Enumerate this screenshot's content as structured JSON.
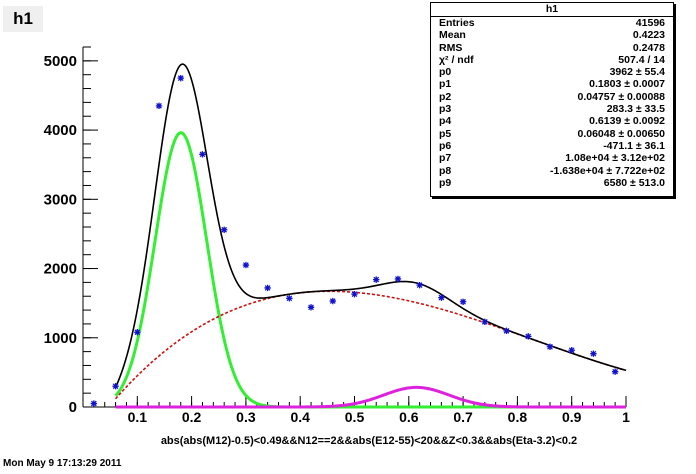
{
  "histogram": {
    "name": "h1",
    "stats_title": "h1",
    "stats": [
      {
        "label": "Entries",
        "value": "41596"
      },
      {
        "label": "Mean",
        "value": "0.4223"
      },
      {
        "label": "RMS",
        "value": "0.2478"
      },
      {
        "label": "χ² / ndf",
        "value": "507.4 / 14"
      },
      {
        "label": "p0",
        "value": "3962 ± 55.4"
      },
      {
        "label": "p1",
        "value": "0.1803 ± 0.0007"
      },
      {
        "label": "p2",
        "value": "0.04757 ± 0.00088"
      },
      {
        "label": "p3",
        "value": "283.3 ± 33.5"
      },
      {
        "label": "p4",
        "value": "0.6139 ± 0.0092"
      },
      {
        "label": "p5",
        "value": "0.06048 ± 0.00650"
      },
      {
        "label": "p6",
        "value": "-471.1 ± 36.1"
      },
      {
        "label": "p7",
        "value": "1.08e+04 ± 3.12e+02"
      },
      {
        "label": "p8",
        "value": "-1.638e+04 ± 7.722e+02"
      },
      {
        "label": "p9",
        "value": "6580 ± 513.0"
      }
    ]
  },
  "footer": {
    "timestamp": "Mon May  9 17:13:29 2011"
  },
  "colors": {
    "total_fit": "#000000",
    "gauss1": "#33ee33",
    "gauss2": "#dd22dd",
    "background": "#cc1111",
    "data_points": "#1111cc"
  },
  "chart_data": {
    "type": "scatter",
    "title": "h1",
    "xlabel": "abs(abs(M12)-0.5)<0.49&&N12==2&&abs(E12-55)<20&&Z<0.3&&abs(Eta-3.2)<0.2",
    "ylabel": "",
    "xlim": [
      0,
      1
    ],
    "ylim": [
      0,
      5200
    ],
    "x_ticks": [
      "0.1",
      "0.2",
      "0.3",
      "0.4",
      "0.5",
      "0.6",
      "0.7",
      "0.8",
      "0.9",
      "1"
    ],
    "y_ticks": [
      "0",
      "1000",
      "2000",
      "3000",
      "4000",
      "5000"
    ],
    "grid": false,
    "data_points": {
      "x": [
        0.02,
        0.06,
        0.1,
        0.14,
        0.18,
        0.22,
        0.26,
        0.3,
        0.34,
        0.38,
        0.42,
        0.46,
        0.5,
        0.54,
        0.58,
        0.62,
        0.66,
        0.7,
        0.74,
        0.78,
        0.82,
        0.86,
        0.9,
        0.94,
        0.98
      ],
      "y": [
        50,
        300,
        1080,
        4350,
        4750,
        3650,
        2560,
        2050,
        1720,
        1570,
        1440,
        1530,
        1630,
        1840,
        1850,
        1760,
        1580,
        1520,
        1230,
        1100,
        1020,
        870,
        820,
        770,
        510
      ]
    },
    "fit_functions": {
      "gauss1": {
        "amplitude": 3962,
        "mean": 0.1803,
        "sigma": 0.04757
      },
      "gauss2": {
        "amplitude": 283.3,
        "mean": 0.6139,
        "sigma": 0.06048
      },
      "background_cubic": {
        "c0": -471.1,
        "c1": 10800,
        "c2": -16380,
        "c3": 6580
      },
      "x_range": [
        0.06,
        1.0
      ]
    }
  }
}
